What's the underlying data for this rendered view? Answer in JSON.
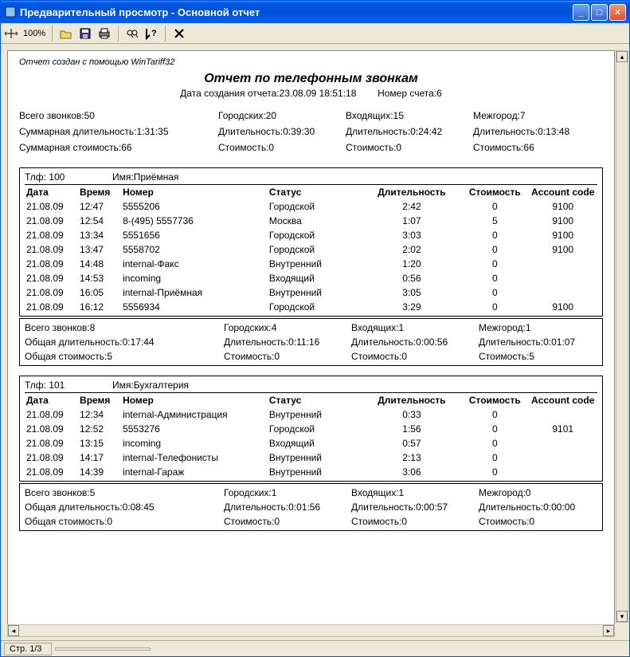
{
  "window": {
    "title": "Предварительный просмотр - Основной отчет"
  },
  "toolbar": {
    "zoom": "100%"
  },
  "statusbar": {
    "page": "Стр. 1/3"
  },
  "report": {
    "credit": "Отчет создан с помощью WinTariff32",
    "title": "Отчет по телефонным звонкам",
    "created_label": "Дата создания отчета:",
    "created_value": "23.08.09 18:51:18",
    "account_label": "Номер счета:",
    "account_value": "6",
    "summary": {
      "r1c1": "Всего звонков:50",
      "r1c2": "Городских:20",
      "r1c3": "Входящих:15",
      "r1c4": "Межгород:7",
      "r2c1": "Суммарная длительность:1:31:35",
      "r2c2": "Длительность:0:39:30",
      "r2c3": "Длительность:0:24:42",
      "r2c4": "Длительность:0:13:48",
      "r3c1": "Суммарная стоимость:66",
      "r3c2": "Стоимость:0",
      "r3c3": "Стоимость:0",
      "r3c4": "Стоимость:66"
    },
    "headers": {
      "date": "Дата",
      "time": "Время",
      "number": "Номер",
      "status": "Статус",
      "duration": "Длительность",
      "cost": "Стоимость",
      "account": "Account code"
    },
    "sections": [
      {
        "phone_label": "Тлф: 100",
        "name_label": "Имя:Приёмная",
        "rows": [
          {
            "date": "21.08.09",
            "time": "12:47",
            "num": "5555206",
            "status": "Городской",
            "dur": "2:42",
            "cost": "0",
            "acc": "9100"
          },
          {
            "date": "21.08.09",
            "time": "12:54",
            "num": "8-(495) 5557736",
            "status": "Москва",
            "dur": "1:07",
            "cost": "5",
            "acc": "9100"
          },
          {
            "date": "21.08.09",
            "time": "13:34",
            "num": "5551656",
            "status": "Городской",
            "dur": "3:03",
            "cost": "0",
            "acc": "9100"
          },
          {
            "date": "21.08.09",
            "time": "13:47",
            "num": "5558702",
            "status": "Городской",
            "dur": "2:02",
            "cost": "0",
            "acc": "9100"
          },
          {
            "date": "21.08.09",
            "time": "14:48",
            "num": "internal-Факс",
            "status": "Внутренний",
            "dur": "1:20",
            "cost": "0",
            "acc": ""
          },
          {
            "date": "21.08.09",
            "time": "14:53",
            "num": "incoming",
            "status": "Входящий",
            "dur": "0:56",
            "cost": "0",
            "acc": ""
          },
          {
            "date": "21.08.09",
            "time": "16:05",
            "num": "internal-Приёмная",
            "status": "Внутренний",
            "dur": "3:05",
            "cost": "0",
            "acc": ""
          },
          {
            "date": "21.08.09",
            "time": "16:12",
            "num": "5556934",
            "status": "Городской",
            "dur": "3:29",
            "cost": "0",
            "acc": "9100"
          }
        ],
        "summary": {
          "r1c1": "Всего звонков:8",
          "r1c2": "Городских:4",
          "r1c3": "Входящих:1",
          "r1c4": "Межгород:1",
          "r2c1": "Общая длительность:0:17:44",
          "r2c2": "Длительность:0:11:16",
          "r2c3": "Длительность:0:00:56",
          "r2c4": "Длительность:0:01:07",
          "r3c1": "Общая стоимость:5",
          "r3c2": "Стоимость:0",
          "r3c3": "Стоимость:0",
          "r3c4": "Стоимость:5"
        }
      },
      {
        "phone_label": "Тлф: 101",
        "name_label": "Имя:Бухгалтерия",
        "rows": [
          {
            "date": "21.08.09",
            "time": "12:34",
            "num": "internal-Администрация",
            "status": "Внутренний",
            "dur": "0:33",
            "cost": "0",
            "acc": ""
          },
          {
            "date": "21.08.09",
            "time": "12:52",
            "num": "5553276",
            "status": "Городской",
            "dur": "1:56",
            "cost": "0",
            "acc": "9101"
          },
          {
            "date": "21.08.09",
            "time": "13:15",
            "num": "incoming",
            "status": "Входящий",
            "dur": "0:57",
            "cost": "0",
            "acc": ""
          },
          {
            "date": "21.08.09",
            "time": "14:17",
            "num": "internal-Телефонисты",
            "status": "Внутренний",
            "dur": "2:13",
            "cost": "0",
            "acc": ""
          },
          {
            "date": "21.08.09",
            "time": "14:39",
            "num": "internal-Гараж",
            "status": "Внутренний",
            "dur": "3:06",
            "cost": "0",
            "acc": ""
          }
        ],
        "summary": {
          "r1c1": "Всего звонков:5",
          "r1c2": "Городских:1",
          "r1c3": "Входящих:1",
          "r1c4": "Межгород:0",
          "r2c1": "Общая длительность:0:08:45",
          "r2c2": "Длительность:0:01:56",
          "r2c3": "Длительность:0:00:57",
          "r2c4": "Длительность:0:00:00",
          "r3c1": "Общая стоимость:0",
          "r3c2": "Стоимость:0",
          "r3c3": "Стоимость:0",
          "r3c4": "Стоимость:0"
        }
      }
    ]
  },
  "colors": {
    "titlebar_start": "#3c8cf0",
    "titlebar_end": "#0058e0",
    "close_btn": "#e04b2f",
    "chrome_bg": "#ece9d8",
    "border": "#aca899",
    "page_bg": "#ffffff",
    "text": "#000000"
  }
}
